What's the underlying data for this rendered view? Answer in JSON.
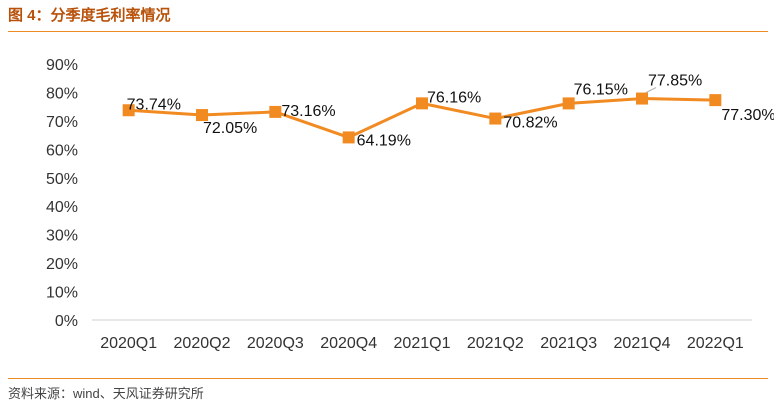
{
  "header": {
    "title": "图 4：分季度毛利率情况"
  },
  "footer": {
    "source": "资料来源：wind、天风证券研究所"
  },
  "chart_data": {
    "type": "line",
    "categories": [
      "2020Q1",
      "2020Q2",
      "2020Q3",
      "2020Q4",
      "2021Q1",
      "2021Q2",
      "2021Q3",
      "2021Q4",
      "2022Q1"
    ],
    "series": [
      {
        "values": [
          73.74,
          72.05,
          73.16,
          64.19,
          76.16,
          70.82,
          76.15,
          77.85,
          77.3
        ]
      }
    ],
    "data_labels": [
      "73.74%",
      "72.05%",
      "73.16%",
      "64.19%",
      "76.16%",
      "70.82%",
      "76.15%",
      "77.85%",
      "77.30%"
    ],
    "yticks": [
      "0%",
      "10%",
      "20%",
      "30%",
      "40%",
      "50%",
      "60%",
      "70%",
      "80%",
      "90%"
    ],
    "ylim": [
      0,
      90
    ],
    "grid": false,
    "line_color": "#f28a22",
    "marker": "square"
  }
}
